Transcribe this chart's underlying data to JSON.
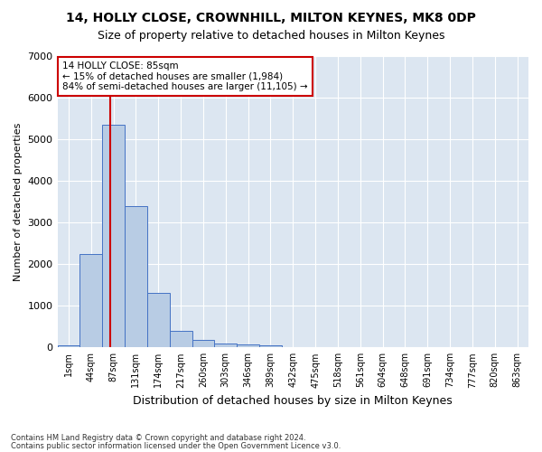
{
  "title1": "14, HOLLY CLOSE, CROWNHILL, MILTON KEYNES, MK8 0DP",
  "title2": "Size of property relative to detached houses in Milton Keynes",
  "xlabel": "Distribution of detached houses by size in Milton Keynes",
  "ylabel": "Number of detached properties",
  "footer1": "Contains HM Land Registry data © Crown copyright and database right 2024.",
  "footer2": "Contains public sector information licensed under the Open Government Licence v3.0.",
  "bin_labels": [
    "1sqm",
    "44sqm",
    "87sqm",
    "131sqm",
    "174sqm",
    "217sqm",
    "260sqm",
    "303sqm",
    "346sqm",
    "389sqm",
    "432sqm",
    "475sqm",
    "518sqm",
    "561sqm",
    "604sqm",
    "648sqm",
    "691sqm",
    "734sqm",
    "777sqm",
    "820sqm",
    "863sqm"
  ],
  "bar_values": [
    50,
    2250,
    5350,
    3400,
    1300,
    400,
    170,
    100,
    65,
    50,
    0,
    0,
    0,
    0,
    0,
    0,
    0,
    0,
    0,
    0,
    0
  ],
  "bar_color": "#b8cce4",
  "bar_edge_color": "#4472c4",
  "bg_color": "#dce6f1",
  "grid_color": "#ffffff",
  "red_line_x": 1.85,
  "annotation_text1": "14 HOLLY CLOSE: 85sqm",
  "annotation_text2": "← 15% of detached houses are smaller (1,984)",
  "annotation_text3": "84% of semi-detached houses are larger (11,105) →",
  "annotation_box_color": "#ffffff",
  "annotation_box_edge": "#cc0000",
  "red_line_color": "#cc0000",
  "ylim": [
    0,
    7000
  ],
  "yticks": [
    0,
    1000,
    2000,
    3000,
    4000,
    5000,
    6000,
    7000
  ]
}
